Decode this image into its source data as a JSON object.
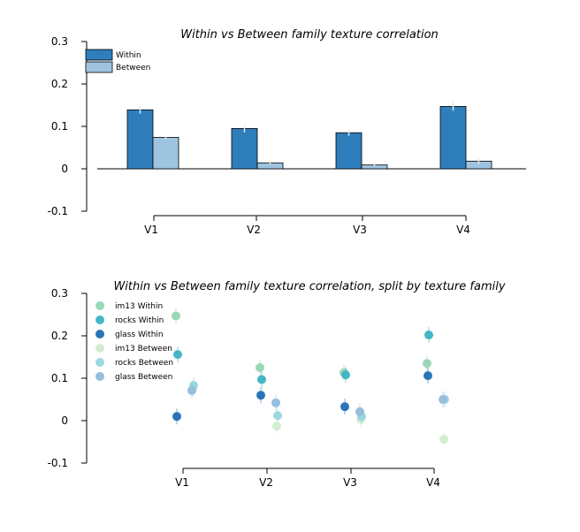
{
  "colors": {
    "within": "#2f7ebc",
    "between": "#9ec4e0",
    "errorbar": "#e8e8e8",
    "im13_within": "#99d8b6",
    "rocks_within": "#44b6c8",
    "glass_within": "#2a75b8",
    "im13_between": "#d2eecf",
    "rocks_between": "#9bd8e0",
    "glass_between": "#96bfdd"
  },
  "chart_data": [
    {
      "type": "bar",
      "title": "Within vs Between family texture correlation",
      "xlabel": "",
      "ylabel": "",
      "categories": [
        "V1",
        "V2",
        "V3",
        "V4"
      ],
      "ylim": [
        -0.1,
        0.3
      ],
      "yticks": [
        "0.3",
        "0.2",
        "0.1",
        "0",
        "-0.1"
      ],
      "ytick_values": [
        0.3,
        0.2,
        0.1,
        0,
        -0.1
      ],
      "legend_position": "top-left",
      "series": [
        {
          "name": "Within",
          "values": [
            0.139,
            0.095,
            0.085,
            0.147
          ],
          "errors": [
            0.009,
            0.009,
            0.007,
            0.01
          ]
        },
        {
          "name": "Between",
          "values": [
            0.074,
            0.014,
            0.009,
            0.018
          ],
          "errors": [
            0.004,
            0.004,
            0.003,
            0.006
          ]
        }
      ]
    },
    {
      "type": "scatter",
      "title": "Within vs Between family texture correlation, split by texture family",
      "xlabel": "",
      "ylabel": "",
      "categories": [
        "V1",
        "V2",
        "V3",
        "V4"
      ],
      "ylim": [
        -0.1,
        0.3
      ],
      "yticks": [
        "0.3",
        "0.2",
        "0.1",
        "0",
        "-0.1"
      ],
      "ytick_values": [
        0.3,
        0.2,
        0.1,
        0,
        -0.1
      ],
      "legend_position": "top-left",
      "series": [
        {
          "name": "im13 Within",
          "values": [
            0.247,
            0.125,
            0.113,
            0.135
          ]
        },
        {
          "name": "rocks Within",
          "values": [
            0.156,
            0.097,
            0.108,
            0.202
          ]
        },
        {
          "name": "glass Within",
          "values": [
            0.01,
            0.06,
            0.033,
            0.106
          ]
        },
        {
          "name": "im13 Between",
          "values": [
            0.075,
            -0.013,
            0.003,
            -0.044
          ]
        },
        {
          "name": "rocks Between",
          "values": [
            0.083,
            0.012,
            0.01,
            0.05
          ]
        },
        {
          "name": "glass Between",
          "values": [
            0.071,
            0.042,
            0.021,
            0.05
          ]
        }
      ]
    }
  ]
}
